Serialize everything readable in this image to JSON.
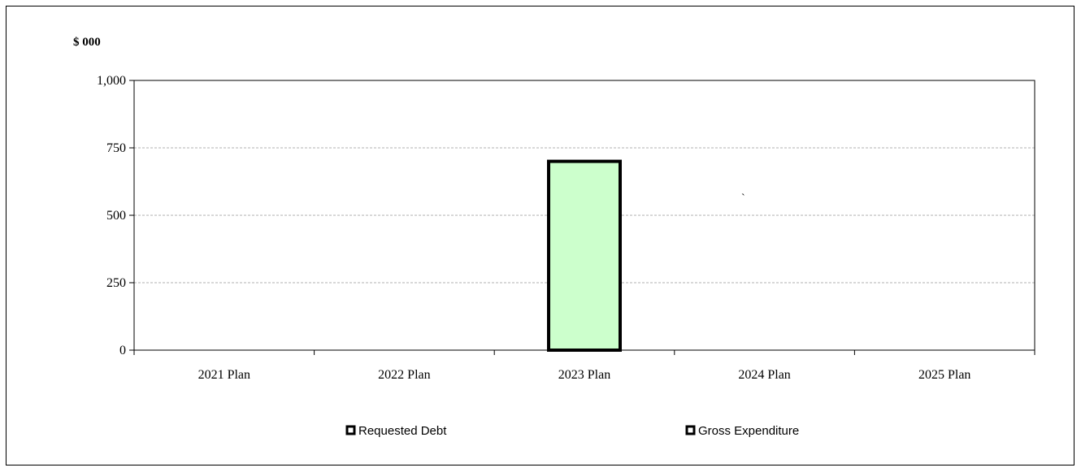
{
  "chart_data": {
    "type": "bar",
    "ylabel": "$ 000",
    "categories": [
      "2021 Plan",
      "2022 Plan",
      "2023 Plan",
      "2024 Plan",
      "2025 Plan"
    ],
    "yticks": [
      "0",
      "250",
      "500",
      "750",
      "1,000"
    ],
    "ylim": [
      0,
      1000
    ],
    "grid": true,
    "legend_position": "bottom",
    "series": [
      {
        "name": "Requested Debt",
        "values": [
          0,
          0,
          0,
          0,
          0
        ],
        "color": "#000000"
      },
      {
        "name": "Gross Expenditure",
        "values": [
          0,
          0,
          700,
          0,
          0
        ],
        "color": "#ccffcc"
      }
    ],
    "annotations": [
      "`"
    ]
  }
}
